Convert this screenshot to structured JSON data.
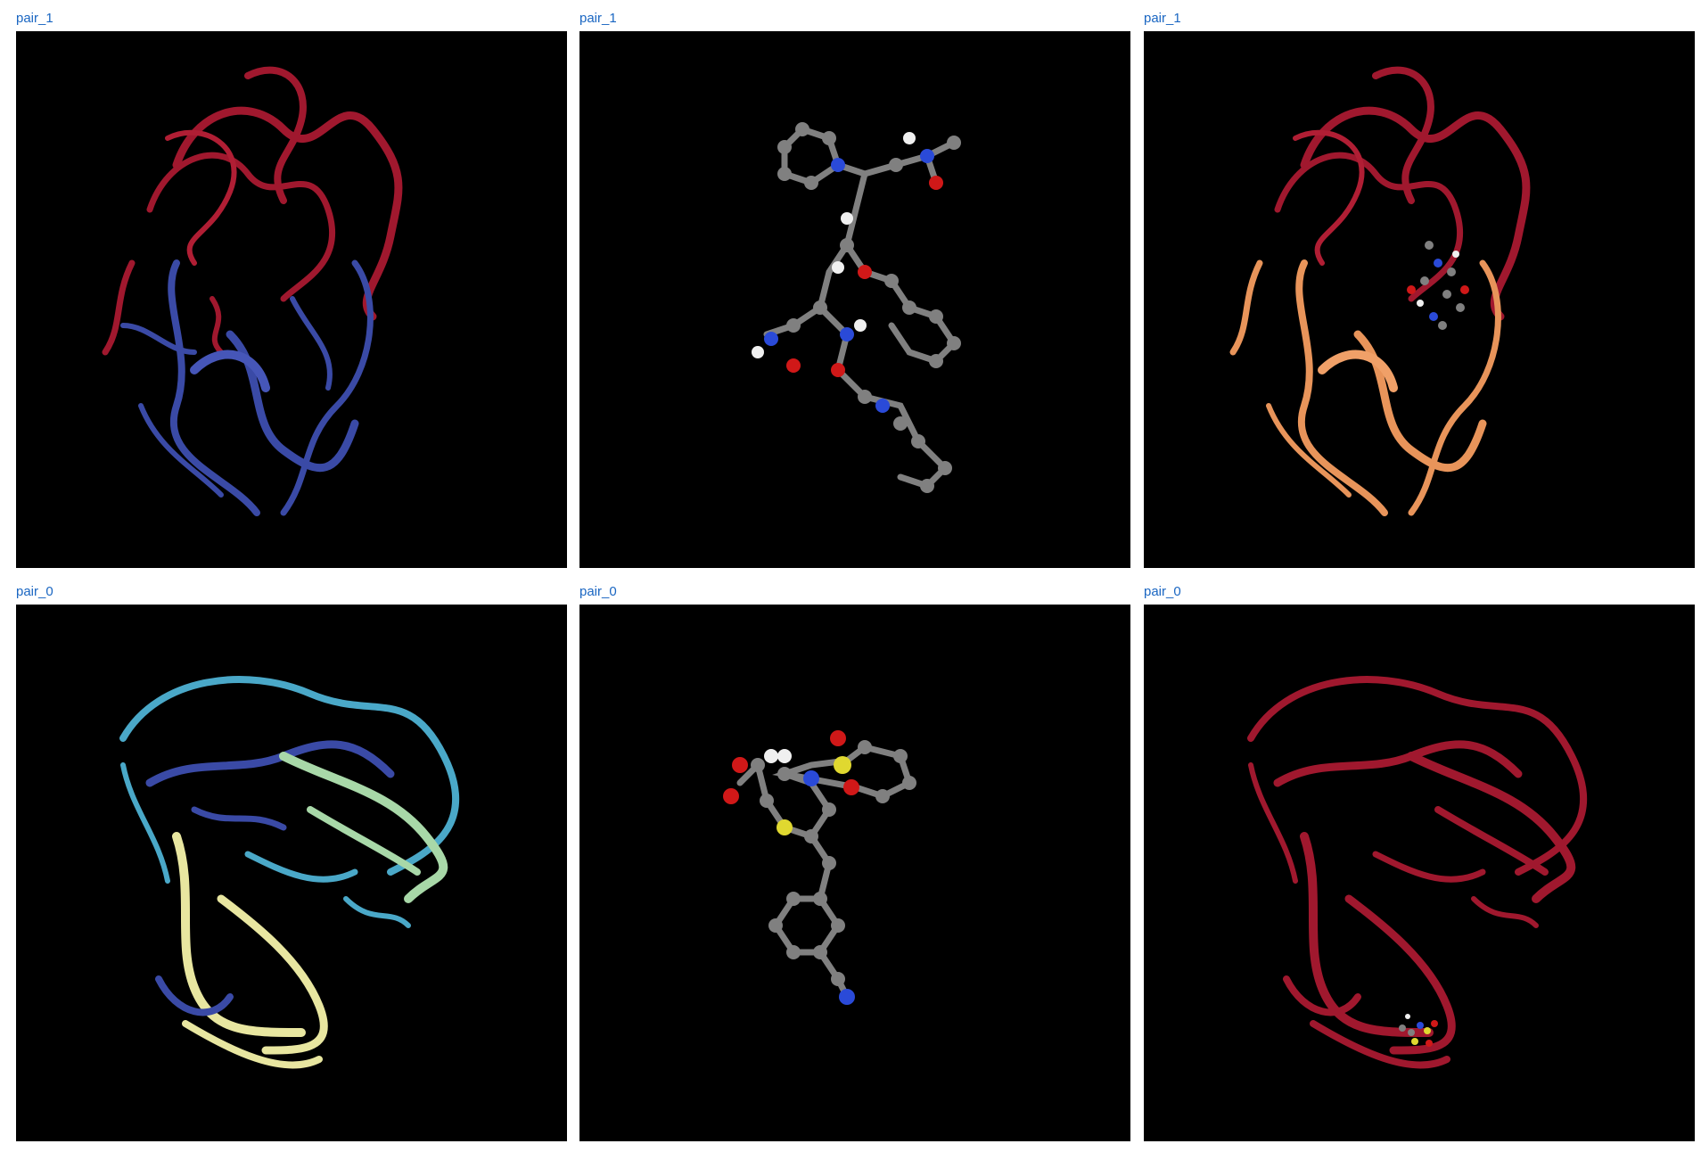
{
  "panels": [
    {
      "label": "pair_1",
      "kind": "protein"
    },
    {
      "label": "pair_1",
      "kind": "ligand"
    },
    {
      "label": "pair_1",
      "kind": "complex"
    },
    {
      "label": "pair_0",
      "kind": "protein"
    },
    {
      "label": "pair_0",
      "kind": "ligand"
    },
    {
      "label": "pair_0",
      "kind": "complex"
    }
  ],
  "colors": {
    "label_text": "#1a66c2",
    "viewport_bg": "#000000",
    "ribbon_red": "#a0182e",
    "ribbon_blue": "#3a4aa6",
    "ribbon_orange": "#e8945a",
    "ribbon_cyan": "#4aa8c8",
    "ribbon_yellow": "#e8e6a0",
    "ribbon_green": "#a8d8a8",
    "atom_carbon": "#808080",
    "atom_nitrogen": "#2a4ad8",
    "atom_oxygen": "#d01818",
    "atom_hydrogen": "#f0f0f0",
    "atom_sulfur": "#e0d830"
  }
}
